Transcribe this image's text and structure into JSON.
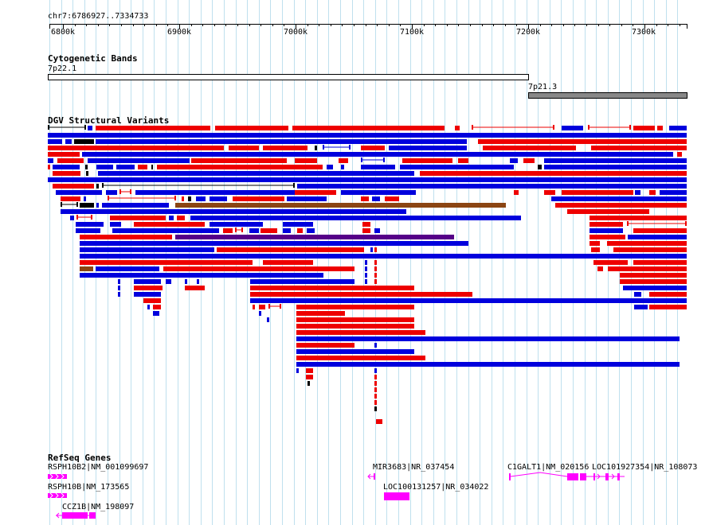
{
  "browser": {
    "position": "chr7:6786927..7334733",
    "ruler_ticks": [
      "6800k",
      "6900k",
      "7000k",
      "7100k",
      "7200k",
      "7300k"
    ]
  },
  "cytoband_track": {
    "title": "Cytogenetic Bands",
    "bands": [
      {
        "name": "7p22.1",
        "stain": "gneg",
        "color": "#ffffff"
      },
      {
        "name": "7p21.3",
        "stain": "gpos",
        "color": "#888888"
      }
    ]
  },
  "dgv_track": {
    "title": "DGV Structural Variants",
    "colors": {
      "loss": "#ee0000",
      "gain": "#0000dd",
      "inversion": "#8b4513",
      "complex": "#550088",
      "other": "#000000"
    }
  },
  "refseq_track": {
    "title": "RefSeq Genes",
    "color": "#ff00ff",
    "genes": [
      {
        "label": "RSPH10B2|NM_001099697"
      },
      {
        "label": "RSPH10B|NM_173565"
      },
      {
        "label": "CCZ1B|NM_198097"
      },
      {
        "label": "MIR3683|NR_037454"
      },
      {
        "label": "LOC100131257|NR_034022"
      },
      {
        "label": "C1GALT1|NM_020156"
      },
      {
        "label": "LOC101927354|NR_108073"
      }
    ]
  }
}
